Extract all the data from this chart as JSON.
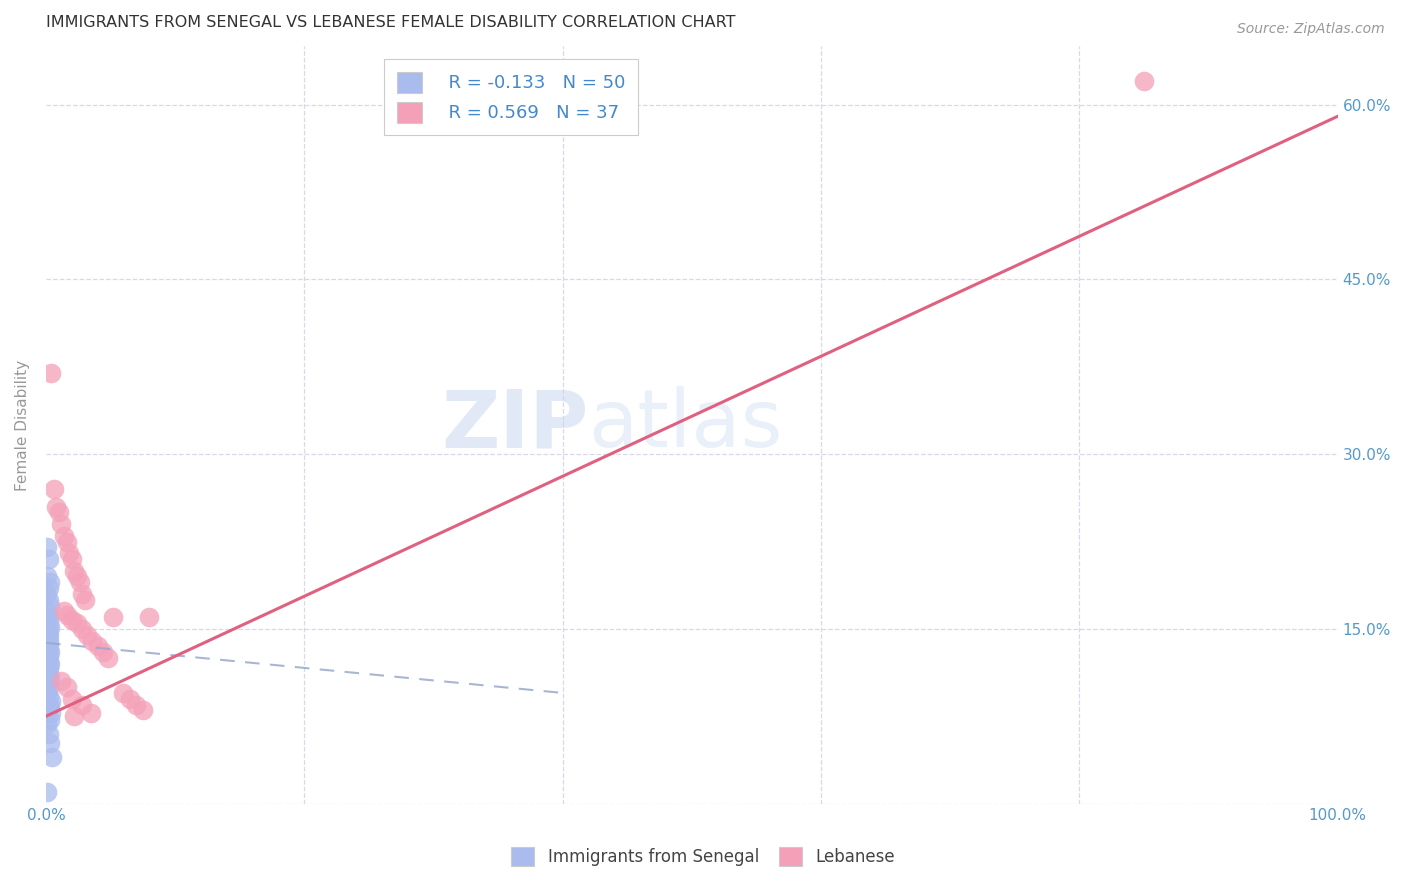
{
  "title": "IMMIGRANTS FROM SENEGAL VS LEBANESE FEMALE DISABILITY CORRELATION CHART",
  "source": "Source: ZipAtlas.com",
  "ylabel": "Female Disability",
  "xlim": [
    0.0,
    1.0
  ],
  "ylim": [
    0.0,
    0.65
  ],
  "x_ticks": [
    0.0,
    0.2,
    0.4,
    0.6,
    0.8,
    1.0
  ],
  "x_tick_labels": [
    "0.0%",
    "",
    "",
    "",
    "",
    "100.0%"
  ],
  "y_ticks": [
    0.0,
    0.15,
    0.3,
    0.45,
    0.6
  ],
  "y_tick_labels_right": [
    "",
    "15.0%",
    "30.0%",
    "45.0%",
    "60.0%"
  ],
  "background_color": "#ffffff",
  "grid_color": "#d8d8e8",
  "legend_R1": "-0.133",
  "legend_N1": "50",
  "legend_R2": "0.569",
  "legend_N2": "37",
  "blue_color": "#aabbee",
  "pink_color": "#f4a0b8",
  "trendline_blue_color": "#99aacc",
  "trendline_pink_color": "#e06080",
  "watermark_zip": "ZIP",
  "watermark_atlas": "atlas",
  "blue_scatter_x": [
    0.001,
    0.002,
    0.001,
    0.003,
    0.002,
    0.001,
    0.002,
    0.003,
    0.001,
    0.002,
    0.001,
    0.002,
    0.003,
    0.001,
    0.002,
    0.001,
    0.002,
    0.001,
    0.002,
    0.001,
    0.002,
    0.001,
    0.002,
    0.003,
    0.001,
    0.002,
    0.001,
    0.002,
    0.003,
    0.001,
    0.002,
    0.001,
    0.002,
    0.001,
    0.003,
    0.002,
    0.001,
    0.002,
    0.001,
    0.002,
    0.004,
    0.003,
    0.002,
    0.004,
    0.003,
    0.001,
    0.002,
    0.003,
    0.005,
    0.001
  ],
  "blue_scatter_y": [
    0.22,
    0.21,
    0.195,
    0.19,
    0.185,
    0.18,
    0.175,
    0.17,
    0.165,
    0.16,
    0.158,
    0.155,
    0.152,
    0.15,
    0.148,
    0.146,
    0.144,
    0.142,
    0.14,
    0.138,
    0.136,
    0.134,
    0.132,
    0.13,
    0.128,
    0.126,
    0.124,
    0.122,
    0.12,
    0.118,
    0.116,
    0.114,
    0.112,
    0.11,
    0.108,
    0.106,
    0.104,
    0.1,
    0.096,
    0.092,
    0.088,
    0.085,
    0.082,
    0.078,
    0.072,
    0.068,
    0.06,
    0.052,
    0.04,
    0.01
  ],
  "pink_scatter_x": [
    0.004,
    0.006,
    0.008,
    0.01,
    0.012,
    0.014,
    0.016,
    0.018,
    0.02,
    0.022,
    0.024,
    0.026,
    0.028,
    0.03,
    0.014,
    0.016,
    0.02,
    0.024,
    0.028,
    0.032,
    0.036,
    0.04,
    0.044,
    0.048,
    0.052,
    0.06,
    0.065,
    0.07,
    0.075,
    0.08,
    0.012,
    0.016,
    0.02,
    0.028,
    0.035,
    0.022,
    0.85
  ],
  "pink_scatter_y": [
    0.37,
    0.27,
    0.255,
    0.25,
    0.24,
    0.23,
    0.225,
    0.215,
    0.21,
    0.2,
    0.195,
    0.19,
    0.18,
    0.175,
    0.165,
    0.162,
    0.158,
    0.155,
    0.15,
    0.145,
    0.14,
    0.135,
    0.13,
    0.125,
    0.16,
    0.095,
    0.09,
    0.085,
    0.08,
    0.16,
    0.105,
    0.1,
    0.09,
    0.085,
    0.078,
    0.075,
    0.62
  ],
  "blue_trend_x": [
    0.0,
    0.4
  ],
  "blue_trend_y": [
    0.138,
    0.095
  ],
  "pink_trend_x": [
    0.0,
    1.0
  ],
  "pink_trend_y": [
    0.075,
    0.59
  ]
}
